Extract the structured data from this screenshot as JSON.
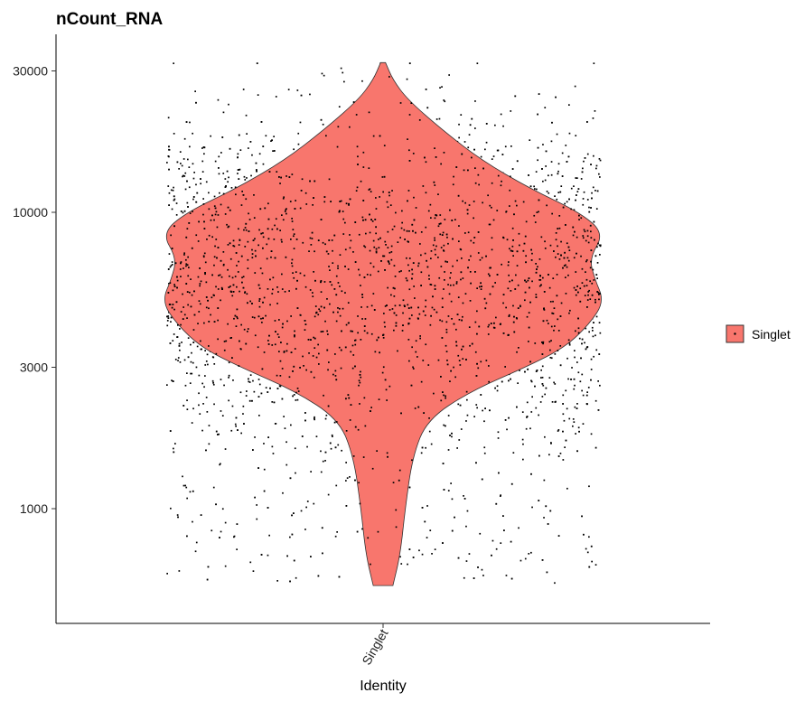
{
  "chart_data": {
    "type": "violin",
    "title": "nCount_RNA",
    "xlabel": "Identity",
    "ylabel": "",
    "y_scale": "log10",
    "ylim": [
      400,
      40000
    ],
    "y_ticks": [
      1000,
      3000,
      10000,
      30000
    ],
    "y_tick_labels": [
      "1000",
      "3000",
      "10000",
      "30000"
    ],
    "categories": [
      "Singlet"
    ],
    "series": [
      {
        "name": "Singlet",
        "color": "#F8766D",
        "min": 550,
        "max": 32000,
        "density_profile": [
          {
            "y": 550,
            "width": 0.04
          },
          {
            "y": 700,
            "width": 0.07
          },
          {
            "y": 1000,
            "width": 0.09
          },
          {
            "y": 1500,
            "width": 0.12
          },
          {
            "y": 2000,
            "width": 0.18
          },
          {
            "y": 2500,
            "width": 0.36
          },
          {
            "y": 3000,
            "width": 0.58
          },
          {
            "y": 3500,
            "width": 0.74
          },
          {
            "y": 4200,
            "width": 0.84
          },
          {
            "y": 5000,
            "width": 0.9
          },
          {
            "y": 6000,
            "width": 0.86
          },
          {
            "y": 7000,
            "width": 0.84
          },
          {
            "y": 8500,
            "width": 0.9
          },
          {
            "y": 10000,
            "width": 0.8
          },
          {
            "y": 12000,
            "width": 0.6
          },
          {
            "y": 15000,
            "width": 0.4
          },
          {
            "y": 19000,
            "width": 0.24
          },
          {
            "y": 24000,
            "width": 0.1
          },
          {
            "y": 28000,
            "width": 0.04
          },
          {
            "y": 32000,
            "width": 0.01
          }
        ]
      }
    ],
    "points": "jittered individual cells shown as black dots",
    "grid": false,
    "legend": {
      "position": "right",
      "entries": [
        "Singlet"
      ]
    }
  }
}
